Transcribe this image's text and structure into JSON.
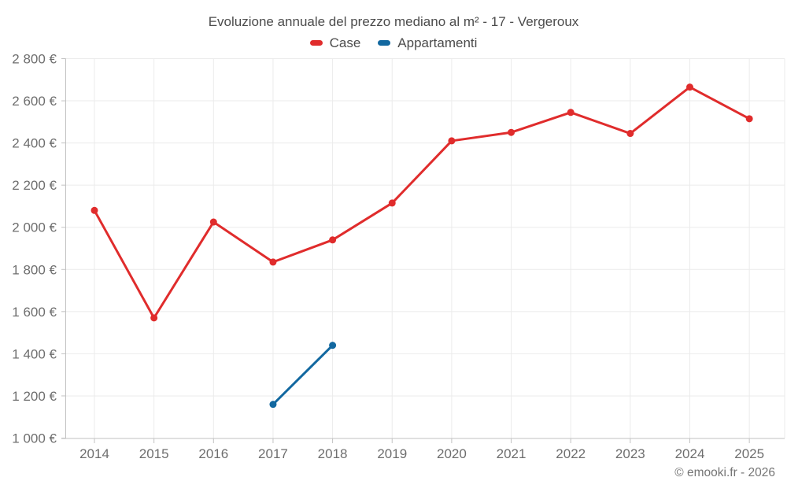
{
  "title": "Evoluzione annuale del prezzo mediano al m² - 17 - Vergeroux",
  "copyright": "© emooki.fr - 2026",
  "legend": {
    "items": [
      {
        "label": "Case",
        "color": "#e02c2c"
      },
      {
        "label": "Appartamenti",
        "color": "#1268a0"
      }
    ]
  },
  "chart_data": {
    "type": "line",
    "title": "Evoluzione annuale del prezzo mediano al m² - 17 - Vergeroux",
    "categories": [
      "2014",
      "2015",
      "2016",
      "2017",
      "2018",
      "2019",
      "2020",
      "2021",
      "2022",
      "2023",
      "2024",
      "2025"
    ],
    "series": [
      {
        "name": "Case",
        "color": "#e02c2c",
        "values": [
          2080,
          1570,
          2025,
          1835,
          1940,
          2115,
          2410,
          2450,
          2545,
          2445,
          2665,
          2515
        ]
      },
      {
        "name": "Appartamenti",
        "color": "#1268a0",
        "values": [
          null,
          null,
          null,
          1160,
          1440,
          null,
          null,
          null,
          null,
          null,
          null,
          null
        ]
      }
    ],
    "ylim": [
      1000,
      2800
    ],
    "ytick_step": 200,
    "ytick_labels": [
      "1 000 €",
      "1 200 €",
      "1 400 €",
      "1 600 €",
      "1 800 €",
      "2 000 €",
      "2 200 €",
      "2 400 €",
      "2 600 €",
      "2 800 €"
    ],
    "y_unit": "€",
    "xlabel": "",
    "ylabel": "",
    "grid": true,
    "legend_position": "top",
    "marker": "circle"
  },
  "colors": {
    "title_text": "#4c4c4c",
    "tick_text": "#6e6e6e",
    "gridline": "#ebebeb",
    "axis_line": "#c2c2c2",
    "background": "#ffffff"
  }
}
